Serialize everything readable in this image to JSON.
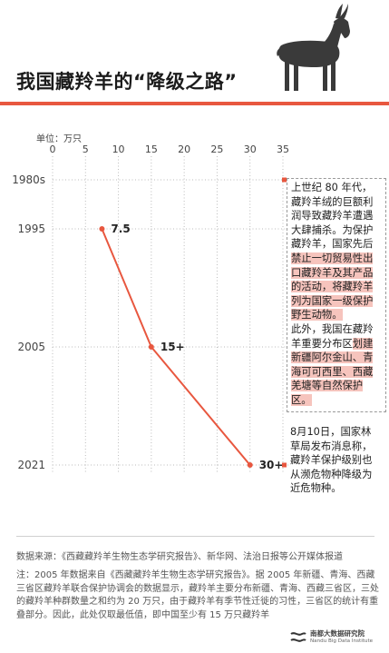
{
  "title": "我国藏羚羊的“降级之路”",
  "chart_data": {
    "type": "line",
    "unit_label": "单位：万只",
    "x_ticks": [
      0,
      5,
      10,
      15,
      20,
      25,
      30,
      35
    ],
    "xlim": [
      0,
      35
    ],
    "categories": [
      "1980s",
      "1995",
      "2005",
      "2021"
    ],
    "series": [
      {
        "values": [
          null,
          7.5,
          15,
          30
        ]
      }
    ],
    "point_labels": [
      "",
      "7.5",
      "15+",
      "30+"
    ],
    "grid": "dotted vertical and horizontal",
    "line_color": "#e8573f"
  },
  "notes": {
    "n1980": {
      "p1_plain": "上世纪 80 年代，藏羚羊绒的巨额利润导致藏羚羊遭遇大肆捕杀。为保护藏羚羊，国家先后",
      "p1_hl": "禁止一切贸易性出口藏羚羊及其产品的活动，将藏羚羊列为国家一级保护野生动物。",
      "p2_plain": "此外，我国在藏羚羊重要分布区",
      "p2_hl": "划建新疆阿尔金山、青海可可西里、西藏羌塘等自然保护区。"
    },
    "n2021": "8月10日，国家林草局发布消息称，藏羚羊保护级别也从濒危物种降级为近危物种。"
  },
  "source": "数据来源：《西藏藏羚羊生物生态学研究报告》、新华网、法治日报等公开媒体报道",
  "footnote": "注：2005 年数据来自《西藏藏羚羊生物生态学研究报告》。据 2005 年新疆、青海、西藏三省区藏羚羊联合保护协调会的数据显示，藏羚羊主要分布新疆、青海、西藏三省区，三处的藏羚羊种群数量之和约为 20 万只，由于藏羚羊有季节性迁徙的习性，三省区的统计有重叠部分。因此，此处仅取最低值，即中国至少有 15 万只藏羚羊",
  "brand": {
    "cn": "南都大数据研究院",
    "en": "Nandu Big Data Institute"
  },
  "colors": {
    "accent": "#e8573f",
    "highlight": "#f6c4bd",
    "antelope": "#3a3a3a"
  },
  "icons": {
    "header": "tibetan-antelope-icon",
    "brand": "brand-logo-icon"
  }
}
